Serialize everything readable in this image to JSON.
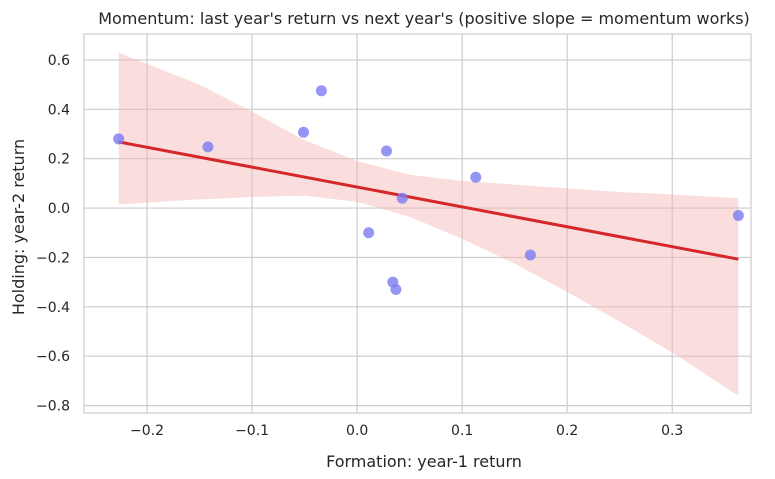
{
  "chart_data": {
    "type": "scatter",
    "title": "Momentum: last year's return vs next year's (positive slope = momentum works)",
    "xlabel": "Formation: year-1 return",
    "ylabel": "Holding: year-2 return",
    "xlim": [
      -0.26,
      0.375
    ],
    "ylim": [
      -0.83,
      0.705
    ],
    "xticks": [
      -0.2,
      -0.1,
      0.0,
      0.1,
      0.2,
      0.3
    ],
    "yticks": [
      -0.8,
      -0.6,
      -0.4,
      -0.2,
      0.0,
      0.2,
      0.4,
      0.6
    ],
    "xtick_labels": [
      "−0.2",
      "−0.1",
      "0.0",
      "0.1",
      "0.2",
      "0.3"
    ],
    "ytick_labels": [
      "−0.8",
      "−0.6",
      "−0.4",
      "−0.2",
      "0.0",
      "0.2",
      "0.4",
      "0.6"
    ],
    "grid": true,
    "points": [
      {
        "x": -0.227,
        "y": 0.28
      },
      {
        "x": -0.142,
        "y": 0.248
      },
      {
        "x": -0.051,
        "y": 0.307
      },
      {
        "x": -0.034,
        "y": 0.475
      },
      {
        "x": 0.011,
        "y": -0.1
      },
      {
        "x": 0.028,
        "y": 0.231
      },
      {
        "x": 0.034,
        "y": -0.3
      },
      {
        "x": 0.037,
        "y": -0.33
      },
      {
        "x": 0.043,
        "y": 0.04
      },
      {
        "x": 0.113,
        "y": 0.125
      },
      {
        "x": 0.165,
        "y": -0.19
      },
      {
        "x": 0.363,
        "y": -0.03
      }
    ],
    "regression": {
      "x": [
        -0.227,
        0.363
      ],
      "y": [
        0.268,
        -0.207
      ]
    },
    "confidence_band": [
      {
        "x": -0.227,
        "lower": 0.015,
        "upper": 0.63
      },
      {
        "x": -0.15,
        "lower": 0.035,
        "upper": 0.5
      },
      {
        "x": -0.1,
        "lower": 0.045,
        "upper": 0.39
      },
      {
        "x": -0.05,
        "lower": 0.05,
        "upper": 0.275
      },
      {
        "x": 0.0,
        "lower": 0.025,
        "upper": 0.19
      },
      {
        "x": 0.05,
        "lower": -0.035,
        "upper": 0.135
      },
      {
        "x": 0.1,
        "lower": -0.125,
        "upper": 0.11
      },
      {
        "x": 0.15,
        "lower": -0.225,
        "upper": 0.095
      },
      {
        "x": 0.2,
        "lower": -0.34,
        "upper": 0.08
      },
      {
        "x": 0.25,
        "lower": -0.46,
        "upper": 0.065
      },
      {
        "x": 0.3,
        "lower": -0.585,
        "upper": 0.055
      },
      {
        "x": 0.363,
        "lower": -0.76,
        "upper": 0.04
      }
    ],
    "colors": {
      "points": "#7b7bf2",
      "line": "#d62728",
      "band": "#f4b6b6"
    }
  }
}
